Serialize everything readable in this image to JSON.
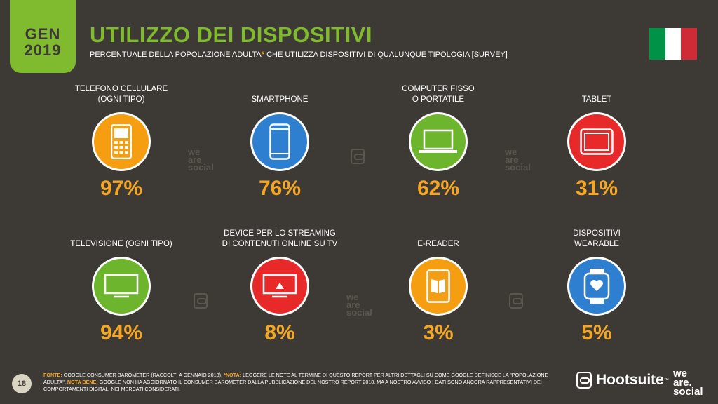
{
  "badge": {
    "line1": "GEN",
    "line2": "2019"
  },
  "title": "UTILIZZO DEI DISPOSITIVI",
  "subtitle": {
    "text": "PERCENTUALE DELLA POPOLAZIONE ADULTA",
    "asterisk": "*",
    "rest": " CHE UTILIZZA DISPOSITIVI DI QUALUNQUE TIPOLOGIA [SURVEY]"
  },
  "flag": {
    "colors": [
      "#009246",
      "#ffffff",
      "#ce2b37"
    ]
  },
  "cards": [
    {
      "label1": "TELEFONO CELLULARE",
      "label2": "(OGNI TIPO)",
      "value": "97%",
      "color": "#f59e12",
      "icon": "mobile-phone-icon"
    },
    {
      "label1": "",
      "label2": "SMARTPHONE",
      "value": "76%",
      "color": "#2f7fd1",
      "icon": "smartphone-icon"
    },
    {
      "label1": "COMPUTER FISSO",
      "label2": "O PORTATILE",
      "value": "62%",
      "color": "#6cb52d",
      "icon": "laptop-icon"
    },
    {
      "label1": "",
      "label2": "TABLET",
      "value": "31%",
      "color": "#e8292a",
      "icon": "tablet-icon"
    },
    {
      "label1": "",
      "label2": "TELEVISIONE (OGNI TIPO)",
      "value": "94%",
      "color": "#6cb52d",
      "icon": "television-icon"
    },
    {
      "label1": "DEVICE PER LO STREAMING",
      "label2": "DI CONTENUTI ONLINE SU TV",
      "value": "8%",
      "color": "#e8292a",
      "icon": "streaming-device-icon"
    },
    {
      "label1": "",
      "label2": "E-READER",
      "value": "3%",
      "color": "#f59e12",
      "icon": "e-reader-icon"
    },
    {
      "label1": "DISPOSITIVI",
      "label2": "WEARABLE",
      "value": "5%",
      "color": "#2f7fd1",
      "icon": "smartwatch-icon"
    }
  ],
  "watermark": {
    "line1": "we",
    "line2": "are",
    "line3": "social"
  },
  "footer": {
    "fonte_label": "FONTE:",
    "fonte_text": " GOOGLE CONSUMER BAROMETER (RACCOLTI A GENNAIO 2018). ",
    "nota_label": "*NOTA:",
    "nota_text": " LEGGERE LE NOTE AL TERMINE DI QUESTO REPORT PER ALTRI DETTAGLI SU COME GOOGLE DEFINISCE LA \"POPOLAZIONE ADULTA\". ",
    "notabene_label": "NOTA BENE:",
    "notabene_text": " GOOGLE NON HA AGGIORNATO IL CONSUMER BAROMETER DALLA PUBBLICAZIONE DEL NOSTRO REPORT 2018, MA A NOSTRO AVVISO I DATI SONO ANCORA RAPPRESENTATIVI DEI COMPORTAMENTI DIGITALI NEI MERCATI CONSIDERATI."
  },
  "page_number": "18",
  "brand": {
    "hootsuite": "Hootsuite",
    "tm": "™",
    "was1": "we",
    "was2": "are.",
    "was3": "social"
  }
}
